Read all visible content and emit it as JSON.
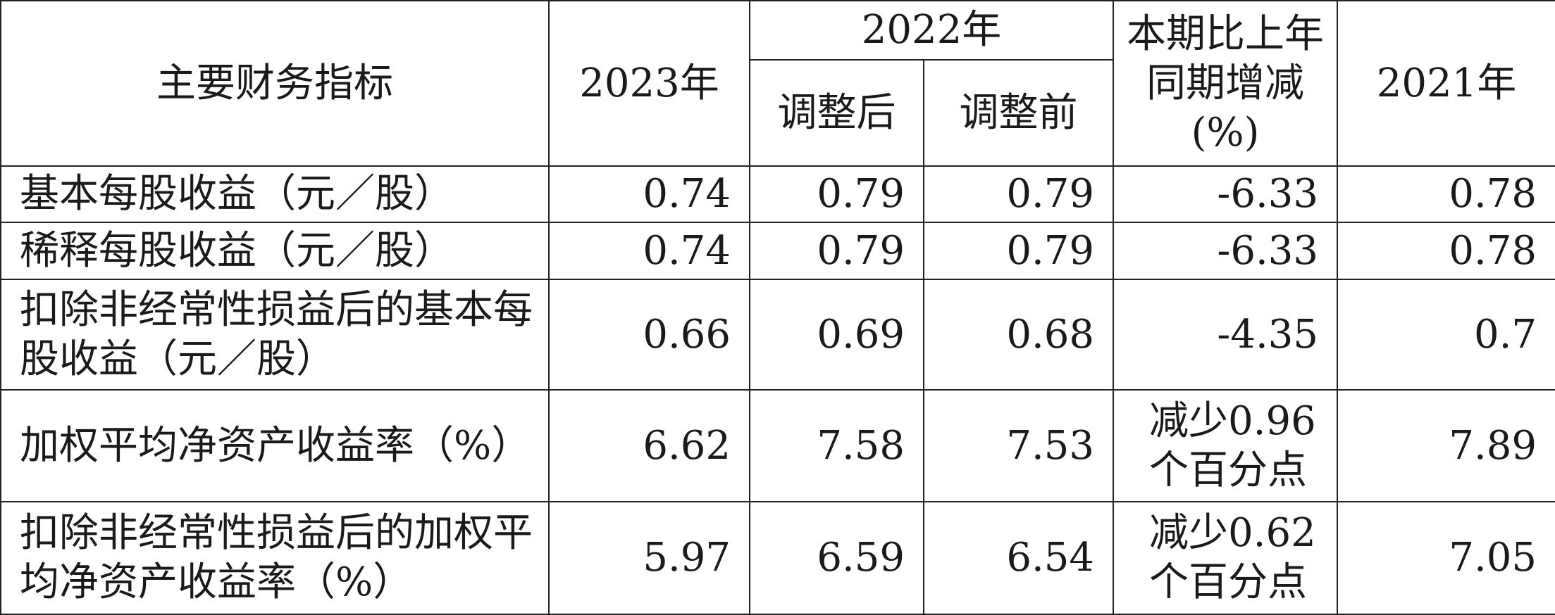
{
  "table": {
    "header": {
      "indicator": "主要财务指标",
      "y2023": "2023年",
      "y2022": "2022年",
      "adjusted": "调整后",
      "before_adjustment": "调整前",
      "change": "本期比上年同期增减(%)",
      "y2021": "2021年"
    },
    "rows": [
      [
        "基本每股收益（元／股）",
        "0.74",
        "0.79",
        "0.79",
        "-6.33",
        "0.78"
      ],
      [
        "稀释每股收益（元／股）",
        "0.74",
        "0.79",
        "0.79",
        "-6.33",
        "0.78"
      ],
      [
        "扣除非经常性损益后的基本每股收益（元／股）",
        "0.66",
        "0.69",
        "0.68",
        "-4.35",
        "0.7"
      ],
      [
        "加权平均净资产收益率（%）",
        "6.62",
        "7.58",
        "7.53",
        "减少0.96个百分点",
        "7.89"
      ],
      [
        "扣除非经常性损益后的加权平均净资产收益率（%）",
        "5.97",
        "6.59",
        "6.54",
        "减少0.62个百分点",
        "7.05"
      ]
    ]
  }
}
